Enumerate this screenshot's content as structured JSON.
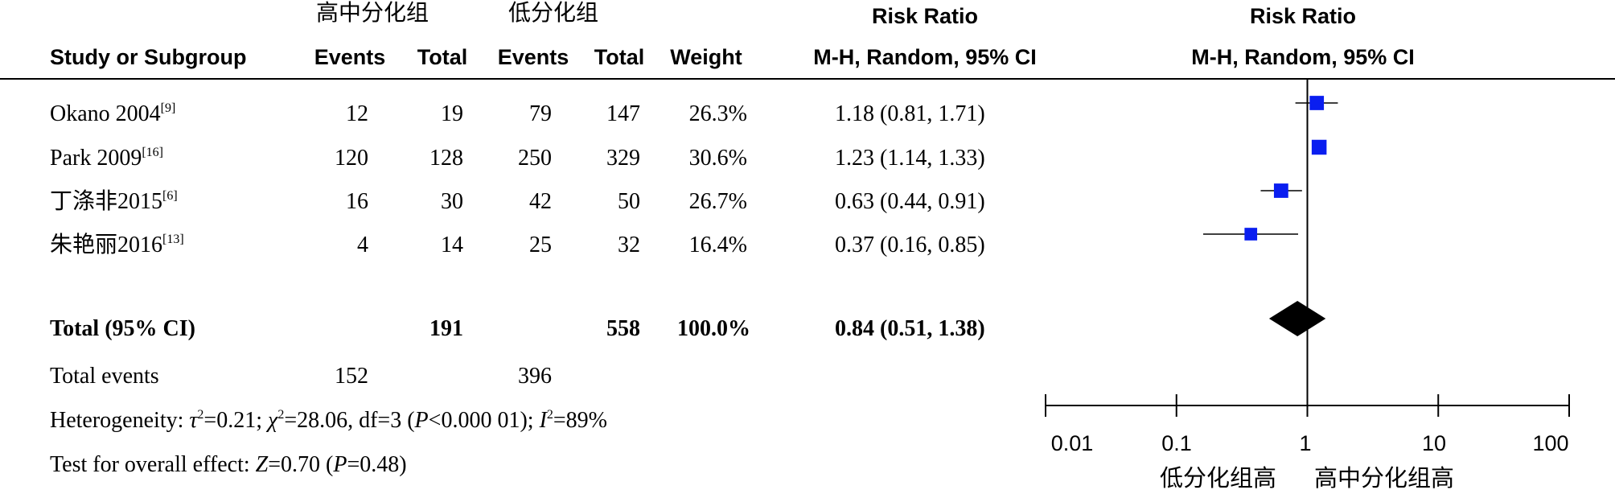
{
  "header": {
    "group1": "高中分化组",
    "group2": "低分化组",
    "rr_title_left": "Risk Ratio",
    "rr_title_right": "Risk Ratio",
    "study_col": "Study or Subgroup",
    "events1": "Events",
    "total1": "Total",
    "events2": "Events",
    "total2": "Total",
    "weight": "Weight",
    "method_left": "M-H, Random, 95% CI",
    "method_right": "M-H, Random, 95% CI"
  },
  "studies": [
    {
      "name": "Okano 2004",
      "ref": "[9]",
      "events1": "12",
      "total1": "19",
      "events2": "79",
      "total2": "147",
      "weight": "26.3%",
      "ci_text": "1.18 (0.81, 1.71)"
    },
    {
      "name": "Park 2009",
      "ref": "[16]",
      "events1": "120",
      "total1": "128",
      "events2": "250",
      "total2": "329",
      "weight": "30.6%",
      "ci_text": "1.23 (1.14, 1.33)"
    },
    {
      "name": "丁涤非2015",
      "ref": "[6]",
      "events1": "16",
      "total1": "30",
      "events2": "42",
      "total2": "50",
      "weight": "26.7%",
      "ci_text": "0.63 (0.44, 0.91)"
    },
    {
      "name": "朱艳丽2016",
      "ref": "[13]",
      "events1": "4",
      "total1": "14",
      "events2": "25",
      "total2": "32",
      "weight": "16.4%",
      "ci_text": "0.37 (0.16, 0.85)"
    }
  ],
  "total": {
    "label": "Total (95% CI)",
    "total1": "191",
    "total2": "558",
    "weight": "100.0%",
    "ci_text": "0.84 (0.51, 1.38)"
  },
  "total_events": {
    "label": "Total events",
    "events1": "152",
    "events2": "396"
  },
  "heterogeneity": {
    "prefix": "Heterogeneity: ",
    "tau": "τ",
    "tau_sup": "2",
    "tau_val": "=0.21; ",
    "chi": "χ",
    "chi_sup": "2",
    "chi_val": "=28.06, df=3 (",
    "p": "P",
    "p_val": "<0.000 01); ",
    "i": "I",
    "i_sup": "2",
    "i_val": "=89%"
  },
  "overall": {
    "prefix": "Test for overall effect: ",
    "z": "Z",
    "z_val": "=0.70 (",
    "p": "P",
    "p_val": "=0.48)"
  },
  "axis": {
    "ticks": [
      "0.01",
      "0.1",
      "1",
      "10",
      "100"
    ],
    "favours_left": "低分化组高",
    "favours_right": "高中分化组高"
  },
  "chart_data": {
    "type": "forest",
    "scale": "log",
    "xlim": [
      0.01,
      100
    ],
    "null_value": 1,
    "marker_color": "#0a1ef0",
    "diamond_color": "#000000",
    "points": [
      {
        "study": "Okano 2004",
        "rr": 1.18,
        "lower": 0.81,
        "upper": 1.71,
        "weight": 26.3
      },
      {
        "study": "Park 2009",
        "rr": 1.23,
        "lower": 1.14,
        "upper": 1.33,
        "weight": 30.6
      },
      {
        "study": "丁涤非2015",
        "rr": 0.63,
        "lower": 0.44,
        "upper": 0.91,
        "weight": 26.7
      },
      {
        "study": "朱艳丽2016",
        "rr": 0.37,
        "lower": 0.16,
        "upper": 0.85,
        "weight": 16.4
      }
    ],
    "pooled": {
      "rr": 0.84,
      "lower": 0.51,
      "upper": 1.38
    }
  }
}
